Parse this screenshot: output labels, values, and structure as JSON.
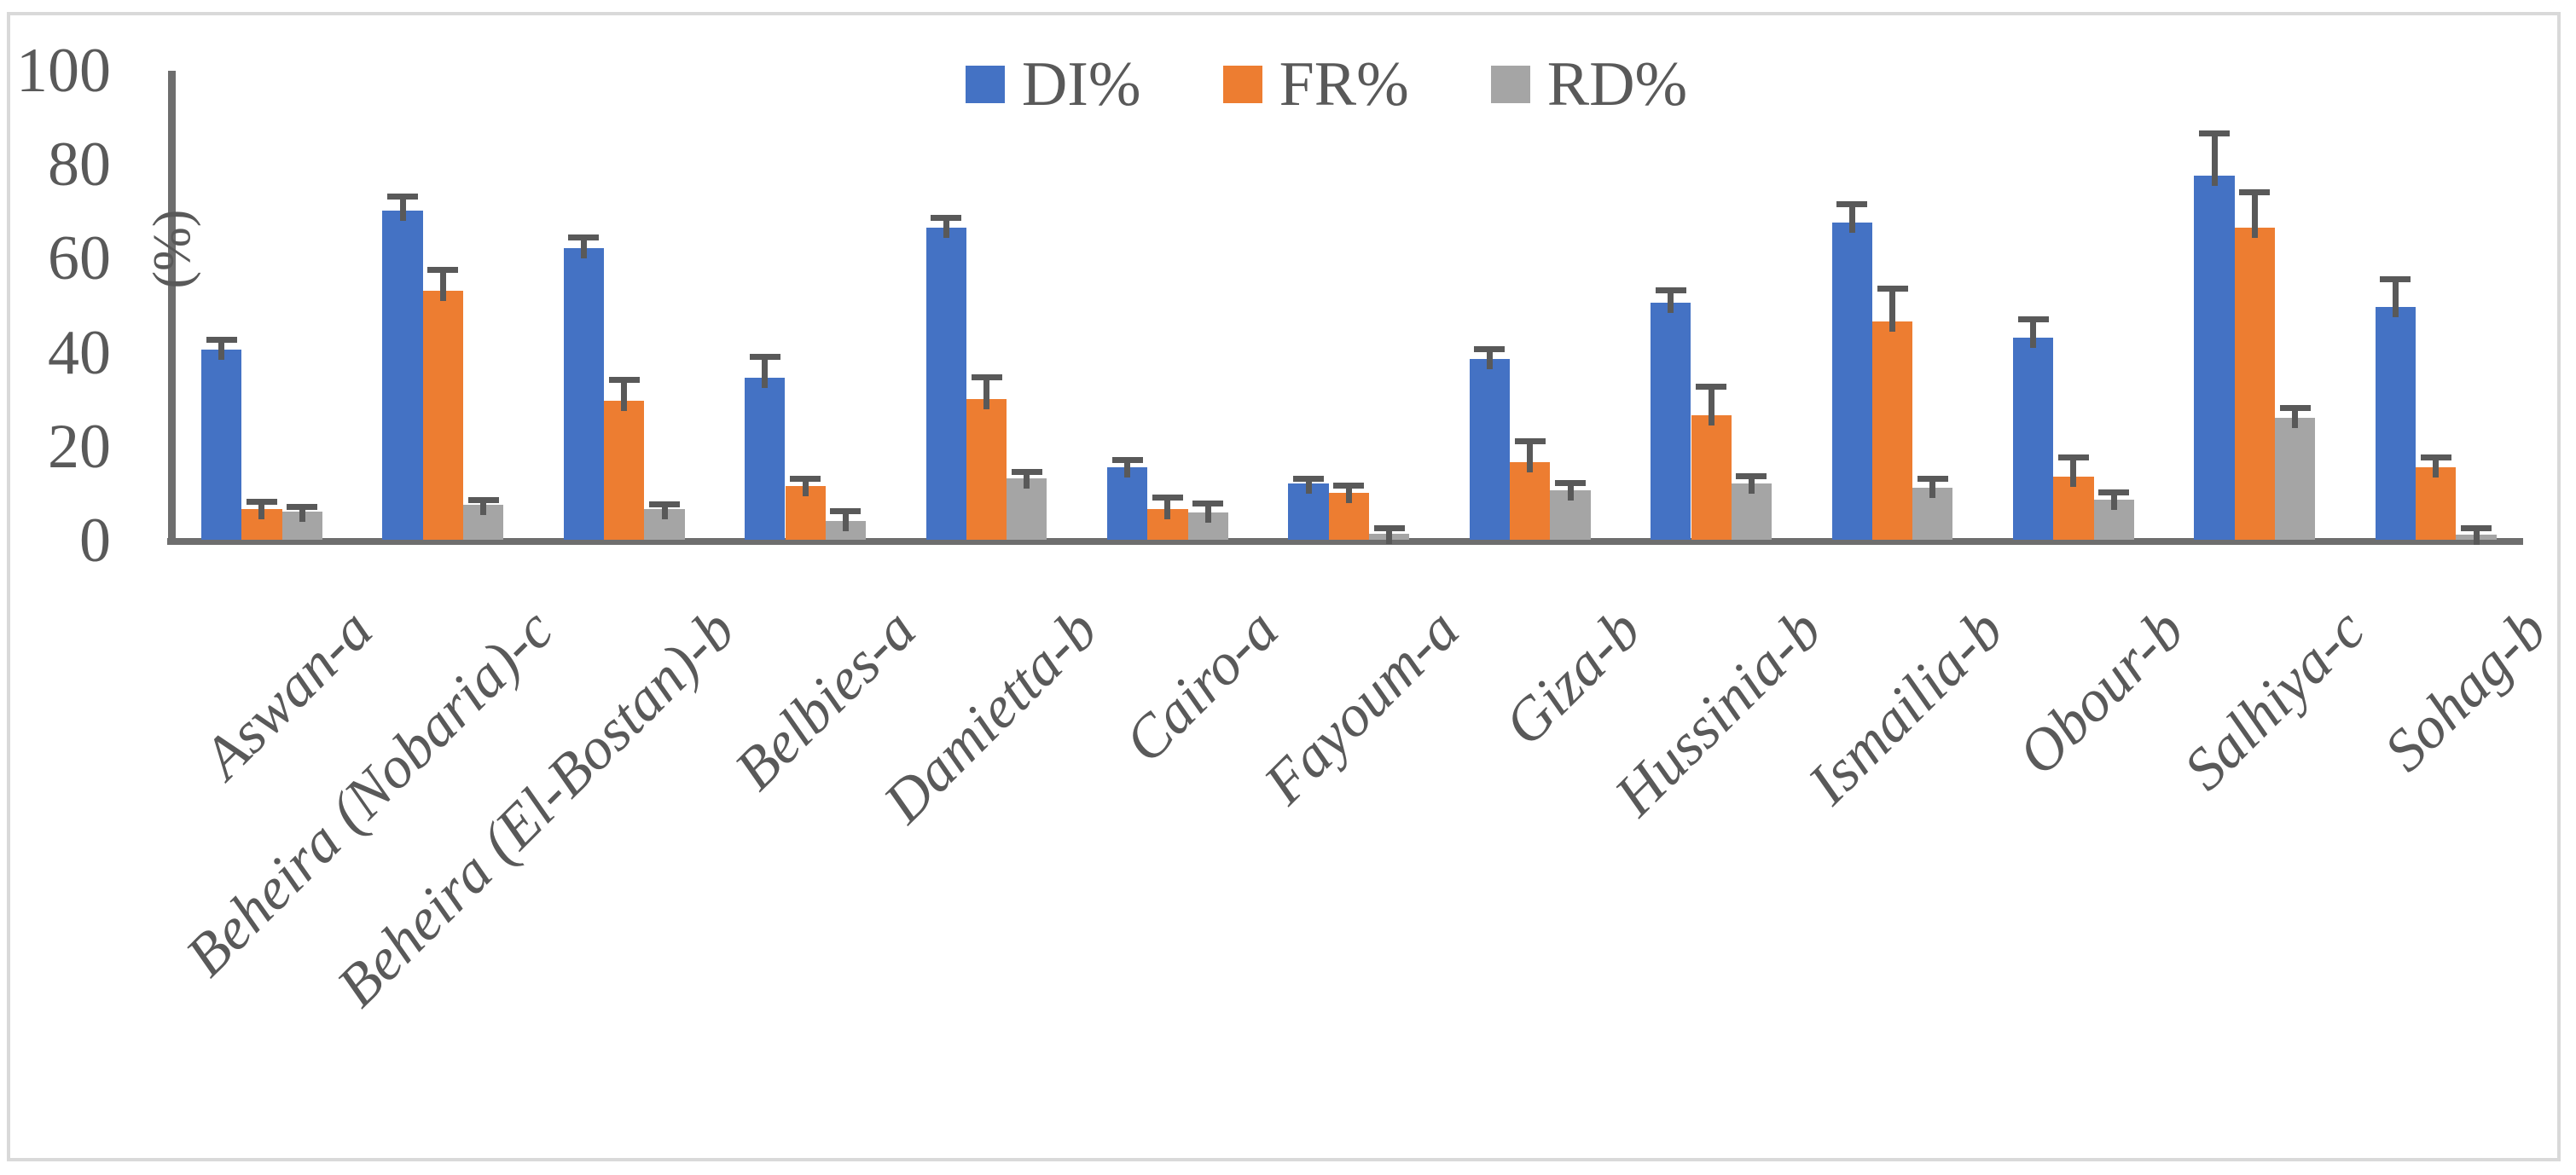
{
  "figure": {
    "y_axis_title": "(%)",
    "y_tick_labels": [
      "0",
      "20",
      "40",
      "60",
      "80",
      "100"
    ]
  },
  "chart_data": {
    "type": "bar",
    "title": "",
    "xlabel": "",
    "ylabel": "(%)",
    "ylim": [
      0,
      100
    ],
    "yticks": [
      0,
      20,
      40,
      60,
      80,
      100
    ],
    "grid": false,
    "legend_position": "top-center",
    "error_bars": true,
    "categories": [
      "Aswan-a",
      "Beheira (Nobaria)-c",
      "Beheira (El-Bostan)-b",
      "Belbies-a",
      "Damietta-b",
      "Cairo-a",
      "Fayoum-a",
      "Giza-b",
      "Hussinia-b",
      "Ismailia-b",
      "Obour-b",
      "Salhiya-c",
      "Sohag-b"
    ],
    "series": [
      {
        "name": "DI%",
        "color": "#4472C4",
        "values": [
          40.5,
          70,
          62,
          34.5,
          66.5,
          15.5,
          12,
          38.5,
          50.5,
          67.5,
          43,
          77.5,
          49.5
        ],
        "errors": [
          2,
          3,
          2.3,
          4.5,
          2,
          1.5,
          1,
          2,
          2.5,
          4,
          4,
          9,
          6
        ]
      },
      {
        "name": "FR%",
        "color": "#ED7D31",
        "values": [
          6.5,
          53,
          29.5,
          11.5,
          30,
          6.5,
          10,
          16.5,
          26.5,
          46.5,
          13.5,
          66.5,
          15.5
        ],
        "errors": [
          1.5,
          4.5,
          4.5,
          1.5,
          4.5,
          2.5,
          1.5,
          4.5,
          6,
          7,
          4,
          7.5,
          2
        ]
      },
      {
        "name": "RD%",
        "color": "#A5A5A5",
        "values": [
          6,
          7.5,
          6.5,
          4,
          13,
          5.8,
          1.2,
          10.5,
          12,
          11,
          8.5,
          26,
          1
        ],
        "errors": [
          1,
          1,
          1,
          2,
          1.5,
          2,
          1.2,
          1.5,
          1.5,
          2,
          1.5,
          2,
          1.5
        ]
      }
    ],
    "colors": {
      "error_bar": "#595959",
      "axis_line": "#6E6E6E",
      "text": "#595959",
      "frame_border": "#D9D9D9",
      "background": "#FFFFFF"
    }
  }
}
